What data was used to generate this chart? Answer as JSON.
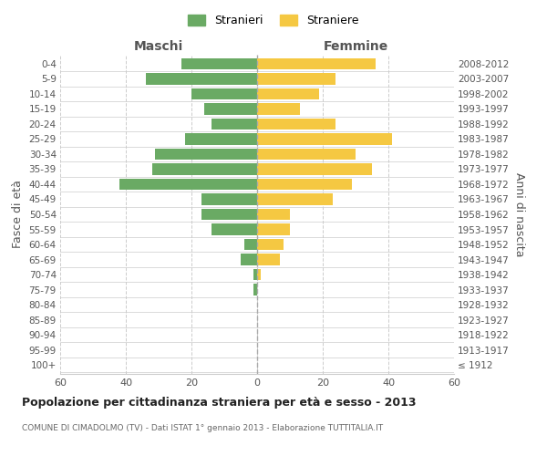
{
  "age_groups": [
    "100+",
    "95-99",
    "90-94",
    "85-89",
    "80-84",
    "75-79",
    "70-74",
    "65-69",
    "60-64",
    "55-59",
    "50-54",
    "45-49",
    "40-44",
    "35-39",
    "30-34",
    "25-29",
    "20-24",
    "15-19",
    "10-14",
    "5-9",
    "0-4"
  ],
  "birth_years": [
    "≤ 1912",
    "1913-1917",
    "1918-1922",
    "1923-1927",
    "1928-1932",
    "1933-1937",
    "1938-1942",
    "1943-1947",
    "1948-1952",
    "1953-1957",
    "1958-1962",
    "1963-1967",
    "1968-1972",
    "1973-1977",
    "1978-1982",
    "1983-1987",
    "1988-1992",
    "1993-1997",
    "1998-2002",
    "2003-2007",
    "2008-2012"
  ],
  "maschi": [
    0,
    0,
    0,
    0,
    0,
    1,
    1,
    5,
    4,
    14,
    17,
    17,
    42,
    32,
    31,
    22,
    14,
    16,
    20,
    34,
    23
  ],
  "femmine": [
    0,
    0,
    0,
    0,
    0,
    0,
    1,
    7,
    8,
    10,
    10,
    23,
    29,
    35,
    30,
    41,
    24,
    13,
    19,
    24,
    36
  ],
  "maschi_color": "#6aaa64",
  "femmine_color": "#f5c842",
  "background_color": "#ffffff",
  "grid_color": "#cccccc",
  "title": "Popolazione per cittadinanza straniera per età e sesso - 2013",
  "subtitle": "COMUNE DI CIMADOLMO (TV) - Dati ISTAT 1° gennaio 2013 - Elaborazione TUTTITALIA.IT",
  "xlabel_left": "Maschi",
  "xlabel_right": "Femmine",
  "ylabel_left": "Fasce di età",
  "ylabel_right": "Anni di nascita",
  "legend_maschi": "Stranieri",
  "legend_femmine": "Straniere",
  "xlim": 60,
  "bar_height": 0.75
}
